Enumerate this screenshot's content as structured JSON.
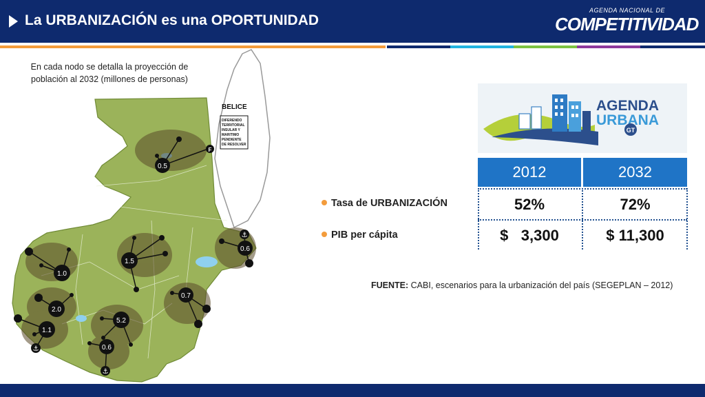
{
  "header": {
    "title": "La URBANIZACIÓN es una OPORTUNIDAD",
    "logo_small": "AGENDA NACIONAL DE",
    "logo_main": "COMPETITIVIDAD"
  },
  "colors": {
    "header_bg": "#0e2a6e",
    "accent_orange": "#f39c3c",
    "table_header": "#1f74c6",
    "map_green": "#9bb35a"
  },
  "map": {
    "caption": "En cada nodo se detalla la proyección de población al 2032 (millones de personas)",
    "belice_label": "BELICE",
    "belice_note": [
      "DIFERENDO",
      "TERRITORIAL",
      "INSULAR Y",
      "MARITIMO",
      "PENDIENTE",
      "DE RESOLVER"
    ],
    "nodes": [
      "0.5",
      "0.6",
      "1.5",
      "1.0",
      "0.7",
      "2.0",
      "5.2",
      "1.1",
      "0.6"
    ]
  },
  "agenda_image": {
    "title_line1": "AGENDA",
    "title_line2": "URBANA",
    "badge": "GT"
  },
  "table": {
    "headers": [
      "2012",
      "2032"
    ],
    "rows": [
      {
        "label": "Tasa de URBANIZACIÓN",
        "values": [
          "52%",
          "72%"
        ]
      },
      {
        "label": "PIB per cápita",
        "values": [
          "$   3,300",
          "$ 11,300"
        ]
      }
    ]
  },
  "source": {
    "label": "FUENTE:",
    "text": " CABI, escenarios para la urbanización del país (SEGEPLAN – 2012)"
  }
}
